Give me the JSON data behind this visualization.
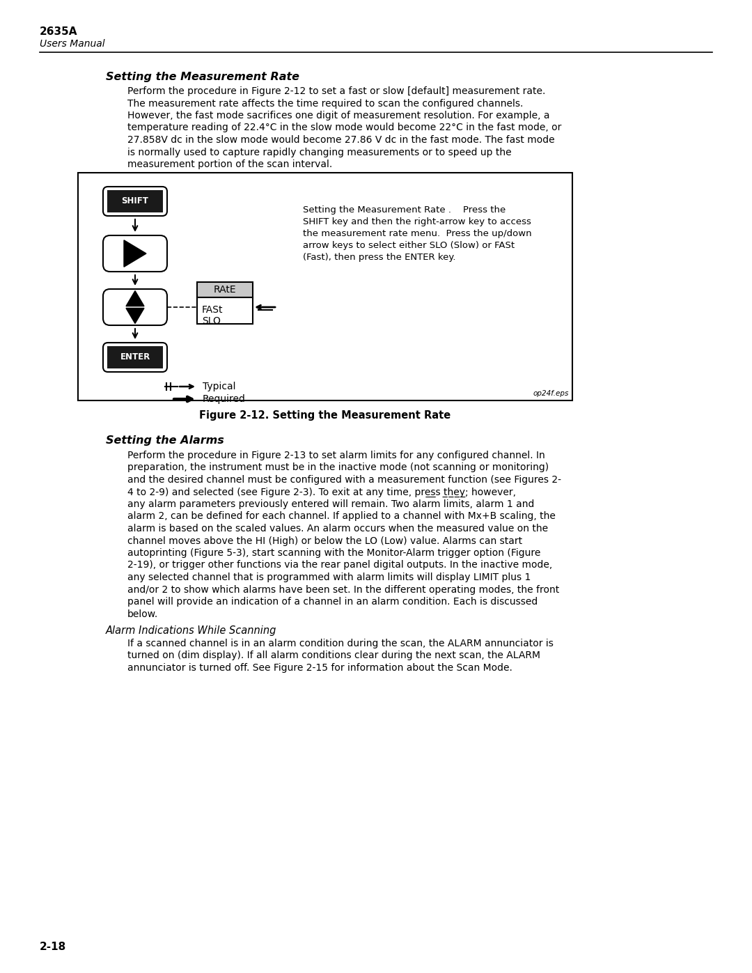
{
  "page_title": "2635A",
  "page_subtitle": "Users Manual",
  "page_number": "2-18",
  "section1_title": "Setting the Measurement Rate",
  "section1_lines": [
    "Perform the procedure in Figure 2-12 to set a fast or slow [default] measurement rate.",
    "The measurement rate affects the time required to scan the configured channels.",
    "However, the fast mode sacrifices one digit of measurement resolution. For example, a",
    "temperature reading of 22.4°C in the slow mode would become 22°C in the fast mode, or",
    "27.858V dc in the slow mode would become 27.86 V dc in the fast mode. The fast mode",
    "is normally used to capture rapidly changing measurements or to speed up the",
    "measurement portion of the scan interval."
  ],
  "figure_caption": "Figure 2-12. Setting the Measurement Rate",
  "figure_label": "op24f.eps",
  "figure_desc_lines": [
    "Setting the Measurement Rate .    Press the",
    "SHIFT key and then the right-arrow key to access",
    "the measurement rate menu.  Press the up/down",
    "arrow keys to select either SLO (Slow) or FASt",
    "(Fast), then press the ENTER key."
  ],
  "section2_title": "Setting the Alarms",
  "section2_lines": [
    "Perform the procedure in Figure 2-13 to set alarm limits for any configured channel. In",
    "preparation, the instrument must be in the inactive mode (not scanning or monitoring)",
    "and the desired channel must be configured with a measurement function (see Figures 2-",
    "4 to 2-9) and selected (see Figure 2-3). To exit at any time, pre̲̲s̲s t̲h̲e̲y̲; however,",
    "any alarm parameters previously entered will remain. Two alarm limits, alarm 1 and",
    "alarm 2, can be defined for each channel. If applied to a channel with Mx+B scaling, the",
    "alarm is based on the scaled values. An alarm occurs when the measured value on the",
    "channel moves above the HI (High) or below the LO (Low) value. Alarms can start",
    "autoprinting (Figure 5-3), start scanning with the Monitor-Alarm trigger option (Figure",
    "2-19), or trigger other functions via the rear panel digital outputs. In the inactive mode,",
    "any selected channel that is programmed with alarm limits will display LIMIT plus 1",
    "and/or 2 to show which alarms have been set. In the different operating modes, the front",
    "panel will provide an indication of a channel in an alarm condition. Each is discussed",
    "below."
  ],
  "section3_title": "Alarm Indications While Scanning",
  "section3_lines": [
    "If a scanned channel is in an alarm condition during the scan, the ALARM annunciator is",
    "turned on (dim display). If all alarm conditions clear during the next scan, the ALARM",
    "annunciator is turned off. See Figure 2-15 for information about the Scan Mode."
  ],
  "bg_color": "#ffffff",
  "text_color": "#000000"
}
